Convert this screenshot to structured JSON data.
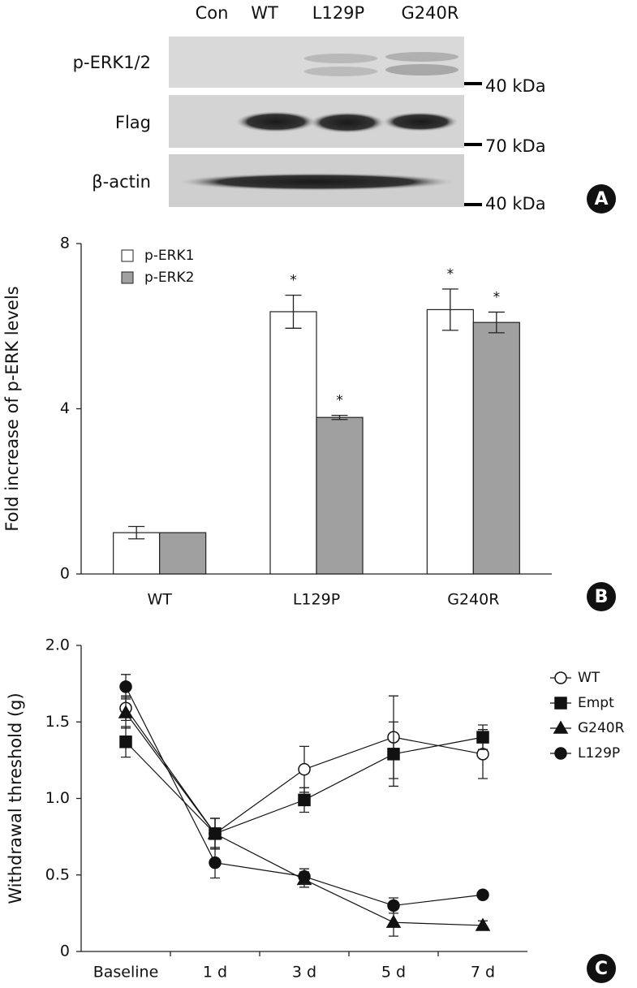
{
  "blot": {
    "lanes": [
      "Con",
      "WT",
      "L129P",
      "G240R"
    ],
    "rows": [
      {
        "label": "p-ERK1/2",
        "marker": "40 kDa"
      },
      {
        "label": "Flag",
        "marker": "70 kDa"
      },
      {
        "label": "β-actin",
        "marker": "40 kDa"
      }
    ],
    "panel": "A"
  },
  "chart_data": [
    {
      "type": "bar",
      "panel": "B",
      "y_label": "Fold increase of p-ERK levels",
      "categories": [
        "WT",
        "L129P",
        "G240R"
      ],
      "series": [
        {
          "name": "p-ERK1",
          "color": "#ffffff",
          "values": [
            1.0,
            6.35,
            6.4
          ],
          "errors": [
            0.15,
            0.4,
            0.5
          ],
          "significance": [
            null,
            "*",
            "*"
          ]
        },
        {
          "name": "p-ERK2",
          "color": "#a0a0a0",
          "values": [
            1.0,
            3.79,
            6.09
          ],
          "errors": [
            0,
            0.05,
            0.25
          ],
          "significance": [
            null,
            "*",
            "*"
          ]
        }
      ],
      "ylim": [
        0,
        8
      ],
      "yticks": [
        0,
        4,
        8
      ],
      "legend": "upper left"
    },
    {
      "type": "line",
      "panel": "C",
      "y_label": "Withdrawal threshold (g)",
      "categories": [
        "Baseline",
        "1 d",
        "3 d",
        "5 d",
        "7 d"
      ],
      "series": [
        {
          "name": "WT",
          "marker": "open-circle",
          "color": "#111111",
          "values": [
            1.59,
            0.77,
            1.19,
            1.4,
            1.29
          ],
          "errors": [
            0.08,
            0.1,
            0.15,
            0.27,
            0.16
          ]
        },
        {
          "name": "Empt",
          "marker": "square",
          "color": "#111111",
          "values": [
            1.37,
            0.77,
            0.99,
            1.29,
            1.4
          ],
          "errors": [
            0.1,
            0.1,
            0.08,
            0.21,
            0.08
          ]
        },
        {
          "name": "G240R",
          "marker": "triangle",
          "color": "#111111",
          "values": [
            1.56,
            0.77,
            0.47,
            0.19,
            0.17
          ],
          "errors": [
            0.1,
            0.1,
            0.05,
            0.09,
            0.03
          ]
        },
        {
          "name": "L129P",
          "marker": "circle",
          "color": "#111111",
          "values": [
            1.73,
            0.58,
            0.49,
            0.3,
            0.37
          ],
          "errors": [
            0.08,
            0.1,
            0.05,
            0.05,
            0
          ]
        }
      ],
      "ylim": [
        0,
        2.0
      ],
      "yticks": [
        0,
        0.5,
        {
          "value": 1.0,
          "label": "1.0"
        },
        1.5,
        {
          "value": 2.0,
          "label": "2.0"
        }
      ],
      "legend": "right"
    }
  ]
}
